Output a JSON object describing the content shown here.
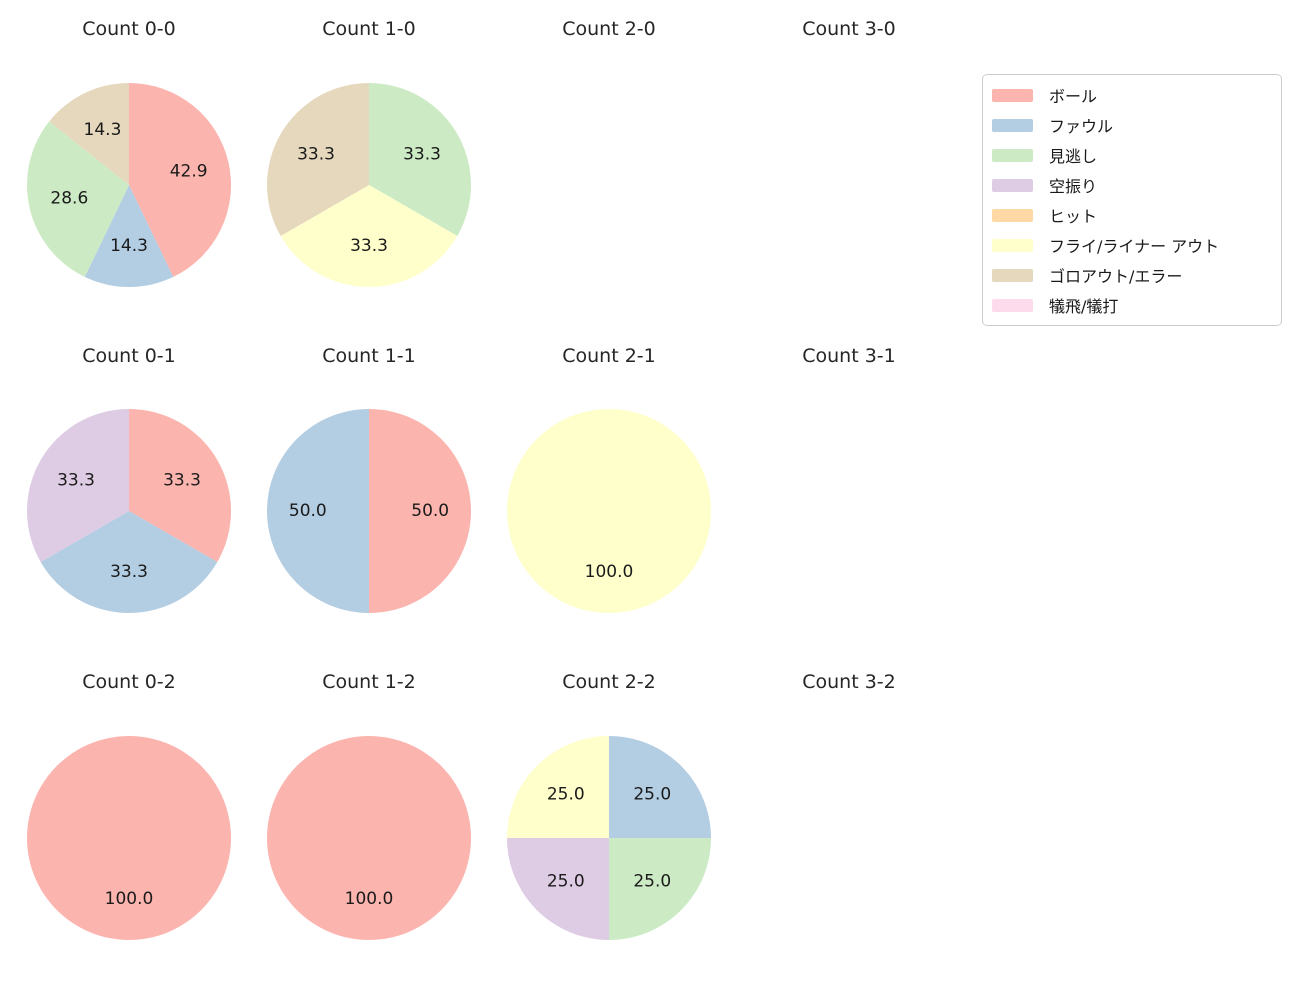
{
  "colors": {
    "ボール": "#fbb4ae",
    "ファウル": "#b3cde3",
    "見逃し": "#ccebc5",
    "空振り": "#decbe4",
    "ヒット": "#fed9a6",
    "フライ/ライナー アウト": "#ffffcc",
    "ゴロアウト/エラー": "#e5d8bd",
    "犠飛/犠打": "#fddaec"
  },
  "legend": {
    "items": [
      {
        "label": "ボール",
        "color": "#fbb4ae"
      },
      {
        "label": "ファウル",
        "color": "#b3cde3"
      },
      {
        "label": "見逃し",
        "color": "#ccebc5"
      },
      {
        "label": "空振り",
        "color": "#decbe4"
      },
      {
        "label": "ヒット",
        "color": "#fed9a6"
      },
      {
        "label": "フライ/ライナー アウト",
        "color": "#ffffcc"
      },
      {
        "label": "ゴロアウト/エラー",
        "color": "#e5d8bd"
      },
      {
        "label": "犠飛/犠打",
        "color": "#fddaec"
      }
    ]
  },
  "chart_data": [
    {
      "type": "pie",
      "title": "Count 0-0",
      "start_angle_deg": 0,
      "direction": "clockwise",
      "slices": [
        {
          "label": "ボール",
          "value": 42.9
        },
        {
          "label": "ファウル",
          "value": 14.3
        },
        {
          "label": "見逃し",
          "value": 28.6
        },
        {
          "label": "ゴロアウト/エラー",
          "value": 14.3
        }
      ]
    },
    {
      "type": "pie",
      "title": "Count 1-0",
      "start_angle_deg": 0,
      "direction": "clockwise",
      "slices": [
        {
          "label": "見逃し",
          "value": 33.3
        },
        {
          "label": "フライ/ライナー アウト",
          "value": 33.3
        },
        {
          "label": "ゴロアウト/エラー",
          "value": 33.3
        }
      ]
    },
    {
      "type": "pie",
      "title": "Count 2-0",
      "slices": []
    },
    {
      "type": "pie",
      "title": "Count 3-0",
      "slices": []
    },
    {
      "type": "pie",
      "title": "Count 0-1",
      "start_angle_deg": 0,
      "direction": "clockwise",
      "slices": [
        {
          "label": "ボール",
          "value": 33.3
        },
        {
          "label": "ファウル",
          "value": 33.3
        },
        {
          "label": "空振り",
          "value": 33.3
        }
      ]
    },
    {
      "type": "pie",
      "title": "Count 1-1",
      "start_angle_deg": 0,
      "direction": "clockwise",
      "slices": [
        {
          "label": "ボール",
          "value": 50.0
        },
        {
          "label": "ファウル",
          "value": 50.0
        }
      ]
    },
    {
      "type": "pie",
      "title": "Count 2-1",
      "start_angle_deg": 0,
      "direction": "clockwise",
      "slices": [
        {
          "label": "フライ/ライナー アウト",
          "value": 100.0
        }
      ]
    },
    {
      "type": "pie",
      "title": "Count 3-1",
      "slices": []
    },
    {
      "type": "pie",
      "title": "Count 0-2",
      "start_angle_deg": 0,
      "direction": "clockwise",
      "slices": [
        {
          "label": "ボール",
          "value": 100.0
        }
      ]
    },
    {
      "type": "pie",
      "title": "Count 1-2",
      "start_angle_deg": 0,
      "direction": "clockwise",
      "slices": [
        {
          "label": "ボール",
          "value": 100.0
        }
      ]
    },
    {
      "type": "pie",
      "title": "Count 2-2",
      "start_angle_deg": 0,
      "direction": "clockwise",
      "slices": [
        {
          "label": "ファウル",
          "value": 25.0
        },
        {
          "label": "見逃し",
          "value": 25.0
        },
        {
          "label": "空振り",
          "value": 25.0
        },
        {
          "label": "フライ/ライナー アウト",
          "value": 25.0
        }
      ]
    },
    {
      "type": "pie",
      "title": "Count 3-2",
      "slices": []
    }
  ]
}
